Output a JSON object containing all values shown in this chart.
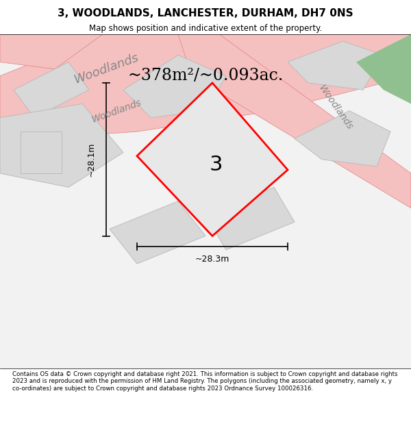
{
  "title": "3, WOODLANDS, LANCHESTER, DURHAM, DH7 0NS",
  "subtitle": "Map shows position and indicative extent of the property.",
  "area_text": "~378m²/~0.093ac.",
  "plot_label": "3",
  "dim_width": "~28.3m",
  "dim_height": "~28.1m",
  "bg_color": "#e8e8e8",
  "plot_fill": "#f0f0f0",
  "road_color": "#f5c0c0",
  "road_outline": "#e08080",
  "building_fill": "#d8d8d8",
  "building_outline": "#bbbbbb",
  "red_outline": "#ff0000",
  "footer_text": "Contains OS data © Crown copyright and database right 2021. This information is subject to Crown copyright and database rights 2023 and is reproduced with the permission of HM Land Registry. The polygons (including the associated geometry, namely x, y co-ordinates) are subject to Crown copyright and database rights 2023 Ordnance Survey 100026316.",
  "map_bg": "#f2f2f2",
  "street_label_color": "#888888",
  "green_corner": "#90c090"
}
